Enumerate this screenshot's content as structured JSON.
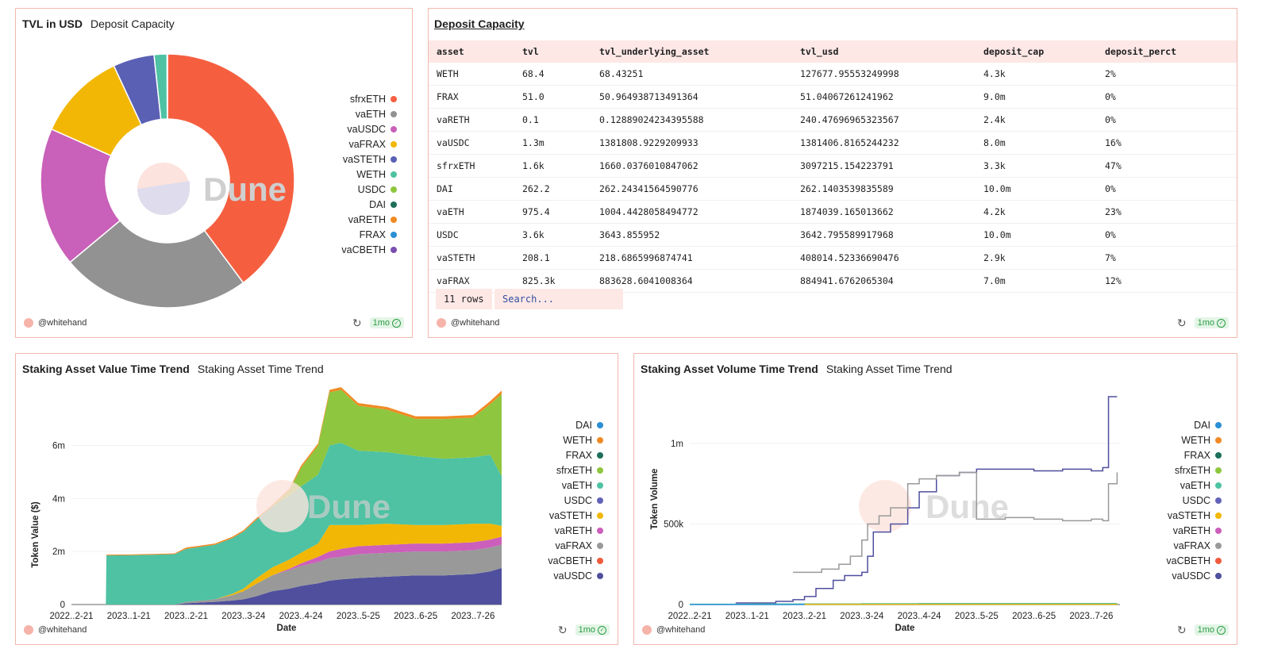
{
  "colors": {
    "sfrxETH": "#8ec63f",
    "vaETH": "#4ec2a3",
    "vaUSDC": "#4f4f9e",
    "vaFRAX": "#999999",
    "vaSTETH": "#f2b705",
    "WETH": "#f08a24",
    "USDC": "#6262b8",
    "DAI": "#2b8fd4",
    "vaRETH": "#cc5fbb",
    "FRAX": "#1d6f5a",
    "vaCBETH": "#f05a3c",
    "pie_sfrxETH": "#f55f40",
    "pie_vaETH": "#929292",
    "pie_vaUSDC": "#c960b9",
    "pie_vaFRAX": "#f2b705",
    "pie_vaSTETH": "#5a60b4",
    "pie_WETH": "#4ec2a3",
    "pie_USDC": "#8ec63f",
    "pie_DAI": "#1d6f5a",
    "pie_vaRETH": "#f08a24",
    "pie_FRAX": "#2b8fd4",
    "pie_vaCBETH": "#7b4fb0"
  },
  "common": {
    "user": "@whitehand",
    "age": "1mo",
    "watermark": "Dune"
  },
  "tvl_panel": {
    "title": "TVL in USD",
    "subtitle": "Deposit Capacity"
  },
  "deposit_panel": {
    "title": "Deposit Capacity",
    "columns": [
      "asset",
      "tvl",
      "tvl_underlying_asset",
      "tvl_usd",
      "deposit_cap",
      "deposit_perct"
    ],
    "rows": [
      [
        "WETH",
        "68.4",
        "68.43251",
        "127677.95553249998",
        "4.3k",
        "2%"
      ],
      [
        "FRAX",
        "51.0",
        "50.964938713491364",
        "51.04067261241962",
        "9.0m",
        "0%"
      ],
      [
        "vaRETH",
        "0.1",
        "0.12889024234395588",
        "240.47696965323567",
        "2.4k",
        "0%"
      ],
      [
        "vaUSDC",
        "1.3m",
        "1381808.9229209933",
        "1381406.8165244232",
        "8.0m",
        "16%"
      ],
      [
        "sfrxETH",
        "1.6k",
        "1660.0376010847062",
        "3097215.154223791",
        "3.3k",
        "47%"
      ],
      [
        "DAI",
        "262.2",
        "262.24341564590776",
        "262.1403539835589",
        "10.0m",
        "0%"
      ],
      [
        "vaETH",
        "975.4",
        "1004.4428058494772",
        "1874039.165013662",
        "4.2k",
        "23%"
      ],
      [
        "USDC",
        "3.6k",
        "3643.855952",
        "3642.795589917968",
        "10.0m",
        "0%"
      ],
      [
        "vaSTETH",
        "208.1",
        "218.6865996874741",
        "408014.52336690476",
        "2.9k",
        "7%"
      ],
      [
        "vaFRAX",
        "825.3k",
        "883628.6041008364",
        "884941.6762065304",
        "7.0m",
        "12%"
      ]
    ],
    "rows_label": "11 rows",
    "search_placeholder": "Search..."
  },
  "value_panel": {
    "title": "Staking Asset Value Time Trend",
    "subtitle": "Staking Asset Time Trend"
  },
  "volume_panel": {
    "title": "Staking Asset Volume Time Trend",
    "subtitle": "Staking Asset Time Trend"
  },
  "chart_data": [
    {
      "type": "pie",
      "title": "TVL in USD",
      "donut": true,
      "legend": [
        "sfrxETH",
        "vaETH",
        "vaUSDC",
        "vaFRAX",
        "vaSTETH",
        "WETH",
        "USDC",
        "DAI",
        "vaRETH",
        "FRAX",
        "vaCBETH"
      ],
      "labels": [
        "sfrxETH",
        "vaETH",
        "vaUSDC",
        "vaFRAX",
        "vaSTETH",
        "WETH",
        "USDC",
        "DAI",
        "vaRETH",
        "FRAX",
        "vaCBETH"
      ],
      "values": [
        3097215.154223791,
        1874039.165013662,
        1381406.8165244232,
        884941.6762065304,
        408014.52336690476,
        127677.95553249998,
        3642.795589917968,
        262.1403539835589,
        240.47696965323567,
        51.04067261241962,
        0
      ]
    },
    {
      "type": "area",
      "stacked": true,
      "title": "Staking Asset Value Time Trend",
      "xlabel": "Date",
      "ylabel": "Token Value ($)",
      "x_ticks": [
        "2022..2-21",
        "2023..1-21",
        "2023..2-21",
        "2023..3-24",
        "2023..4-24",
        "2023..5-25",
        "2023..6-25",
        "2023..7-26"
      ],
      "y_ticks": [
        "0",
        "2m",
        "4m",
        "6m"
      ],
      "ylim": [
        0,
        7.9
      ],
      "x_index_range": [
        0,
        7.5
      ],
      "legend": [
        "DAI",
        "WETH",
        "FRAX",
        "sfrxETH",
        "vaETH",
        "USDC",
        "vaSTETH",
        "vaRETH",
        "vaFRAX",
        "vaCBETH",
        "vaUSDC"
      ],
      "x": [
        0,
        0.6,
        0.61,
        1.0,
        1.5,
        1.8,
        2.0,
        2.5,
        2.8,
        3.0,
        3.2,
        3.5,
        3.8,
        4.0,
        4.3,
        4.5,
        4.7,
        5.0,
        5.5,
        6.0,
        6.5,
        7.0,
        7.3,
        7.5
      ],
      "series": [
        {
          "name": "vaUSDC",
          "values": [
            0,
            0,
            0,
            0,
            0,
            0,
            0.05,
            0.1,
            0.15,
            0.2,
            0.3,
            0.5,
            0.6,
            0.7,
            0.8,
            0.9,
            0.95,
            1.0,
            1.05,
            1.1,
            1.1,
            1.15,
            1.25,
            1.38
          ]
        },
        {
          "name": "vaFRAX",
          "values": [
            0,
            0,
            0,
            0,
            0,
            0,
            0.05,
            0.1,
            0.2,
            0.3,
            0.45,
            0.6,
            0.7,
            0.75,
            0.8,
            0.85,
            0.85,
            0.9,
            0.9,
            0.9,
            0.9,
            0.9,
            0.9,
            0.88
          ]
        },
        {
          "name": "vaRETH",
          "values": [
            0,
            0,
            0,
            0,
            0,
            0,
            0,
            0,
            0,
            0,
            0,
            0,
            0.05,
            0.1,
            0.2,
            0.25,
            0.3,
            0.3,
            0.3,
            0.3,
            0.3,
            0.3,
            0.3,
            0.3
          ]
        },
        {
          "name": "vaSTETH",
          "values": [
            0,
            0,
            0,
            0,
            0,
            0,
            0,
            0,
            0.05,
            0.1,
            0.2,
            0.3,
            0.35,
            0.4,
            0.5,
            1.0,
            0.9,
            0.8,
            0.8,
            0.7,
            0.7,
            0.7,
            0.6,
            0.41
          ]
        },
        {
          "name": "vaETH",
          "values": [
            0,
            0,
            1.85,
            1.86,
            1.88,
            1.9,
            2.0,
            2.05,
            2.1,
            2.15,
            2.2,
            2.3,
            2.4,
            2.5,
            2.6,
            3.0,
            3.1,
            2.8,
            2.7,
            2.6,
            2.5,
            2.5,
            2.6,
            1.87
          ]
        },
        {
          "name": "sfrxETH",
          "values": [
            0,
            0,
            0,
            0,
            0,
            0,
            0,
            0,
            0,
            0,
            0,
            0,
            0.2,
            0.7,
            1.1,
            2.0,
            2.0,
            1.7,
            1.6,
            1.4,
            1.5,
            1.5,
            1.9,
            3.1
          ]
        },
        {
          "name": "WETH",
          "values": [
            0,
            0,
            0.03,
            0.03,
            0.03,
            0.03,
            0.05,
            0.05,
            0.05,
            0.05,
            0.06,
            0.06,
            0.07,
            0.08,
            0.08,
            0.1,
            0.1,
            0.1,
            0.1,
            0.1,
            0.1,
            0.1,
            0.12,
            0.13
          ]
        }
      ]
    },
    {
      "type": "line",
      "title": "Staking Asset Volume Time Trend",
      "xlabel": "Date",
      "ylabel": "Token Volume",
      "x_ticks": [
        "2022..2-21",
        "2023..1-21",
        "2023..2-21",
        "2023..3-24",
        "2023..4-24",
        "2023..5-25",
        "2023..6-25",
        "2023..7-26"
      ],
      "y_ticks": [
        "0",
        "500k",
        "1m"
      ],
      "ylim": [
        0,
        1.3
      ],
      "x_index_range": [
        0,
        7.5
      ],
      "legend": [
        "DAI",
        "WETH",
        "FRAX",
        "sfrxETH",
        "vaETH",
        "USDC",
        "vaSTETH",
        "vaRETH",
        "vaFRAX",
        "vaCBETH",
        "vaUSDC"
      ],
      "series": [
        {
          "name": "vaUSDC",
          "x": [
            0.8,
            1.5,
            1.8,
            2.0,
            2.2,
            2.5,
            2.7,
            3.0,
            3.1,
            3.2,
            3.5,
            3.8,
            4.0,
            4.3,
            4.7,
            5.0,
            5.5,
            6.0,
            6.5,
            7.0,
            7.2,
            7.3,
            7.45
          ],
          "values": [
            0.01,
            0.02,
            0.03,
            0.05,
            0.1,
            0.15,
            0.18,
            0.2,
            0.3,
            0.45,
            0.5,
            0.6,
            0.7,
            0.8,
            0.82,
            0.84,
            0.84,
            0.83,
            0.84,
            0.83,
            0.85,
            1.29,
            1.29
          ]
        },
        {
          "name": "vaFRAX",
          "x": [
            1.8,
            2.0,
            2.3,
            2.6,
            2.8,
            3.0,
            3.1,
            3.3,
            3.5,
            3.8,
            4.0,
            4.3,
            4.7,
            5.0,
            5.5,
            6.0,
            6.5,
            7.0,
            7.2,
            7.3,
            7.45
          ],
          "values": [
            0.2,
            0.2,
            0.22,
            0.25,
            0.3,
            0.4,
            0.5,
            0.55,
            0.6,
            0.75,
            0.78,
            0.8,
            0.82,
            0.53,
            0.54,
            0.53,
            0.52,
            0.53,
            0.52,
            0.75,
            0.82
          ]
        },
        {
          "name": "vaETH",
          "x": [
            0,
            1.0,
            2.0,
            3.0,
            4.0,
            5.0,
            6.0,
            7.0,
            7.45
          ],
          "values": [
            0.002,
            0.003,
            0.004,
            0.005,
            0.006,
            0.006,
            0.006,
            0.006,
            0.006
          ]
        },
        {
          "name": "DAI",
          "x": [
            0,
            1.0,
            2.0,
            3.0,
            4.0,
            5.0,
            6.0,
            7.0,
            7.45
          ],
          "values": [
            0,
            0,
            0,
            0,
            0,
            0,
            0,
            0,
            0
          ]
        },
        {
          "name": "vaSTETH",
          "x": [
            2.0,
            3.0,
            4.0,
            5.0,
            6.0,
            7.0,
            7.45
          ],
          "values": [
            0.001,
            0.001,
            0.001,
            0.001,
            0.001,
            0.001,
            0.001
          ]
        }
      ]
    }
  ]
}
